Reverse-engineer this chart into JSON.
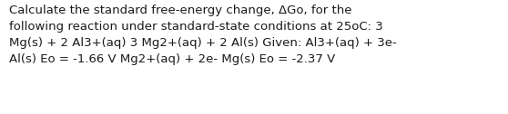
{
  "background_color": "#ffffff",
  "text_color": "#1a1a1a",
  "font_size": 9.5,
  "line1": "Calculate the standard free-energy change, ΔGo, for the",
  "line2": "following reaction under standard-state conditions at 25oC: 3",
  "line3": "Mg(s) + 2 Al3+(aq) 3 Mg2+(aq) + 2 Al(s) Given: Al3+(aq) + 3e-",
  "line4": "Al(s) Eo = -1.66 V Mg2+(aq) + 2e- Mg(s) Eo = -2.37 V",
  "fig_width": 5.58,
  "fig_height": 1.26,
  "dpi": 100
}
